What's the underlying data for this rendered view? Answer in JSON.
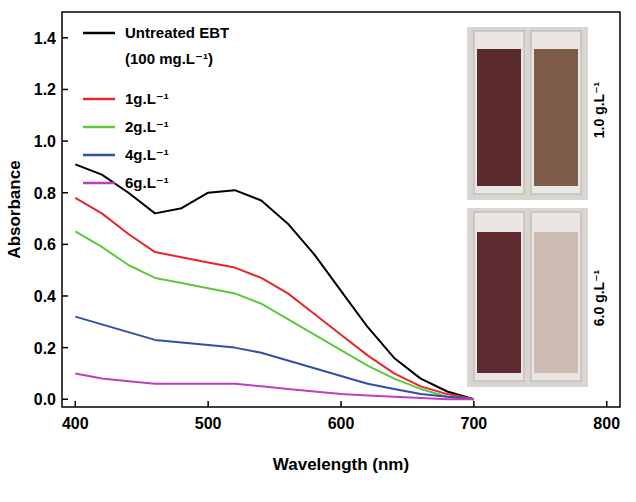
{
  "chart_data": {
    "type": "line",
    "x_label": "Wavelength (nm)",
    "y_label": "Absorbance",
    "x": [
      400,
      420,
      440,
      460,
      480,
      500,
      520,
      540,
      560,
      580,
      600,
      620,
      640,
      660,
      680,
      700
    ],
    "series": [
      {
        "name": "Untreated EBT (100 mg.L⁻¹)",
        "color": "#000000",
        "values": [
          0.91,
          0.87,
          0.8,
          0.72,
          0.74,
          0.8,
          0.81,
          0.77,
          0.68,
          0.56,
          0.42,
          0.28,
          0.16,
          0.08,
          0.03,
          0.0
        ]
      },
      {
        "name": "1g.L⁻¹",
        "color": "#e8262b",
        "values": [
          0.78,
          0.72,
          0.64,
          0.57,
          0.55,
          0.53,
          0.51,
          0.47,
          0.41,
          0.33,
          0.25,
          0.17,
          0.1,
          0.05,
          0.02,
          0.0
        ]
      },
      {
        "name": "2g.L⁻¹",
        "color": "#5cc83c",
        "values": [
          0.65,
          0.59,
          0.52,
          0.47,
          0.45,
          0.43,
          0.41,
          0.37,
          0.31,
          0.25,
          0.19,
          0.13,
          0.08,
          0.04,
          0.01,
          0.0
        ]
      },
      {
        "name": "4g.L⁻¹",
        "color": "#2f4fa8",
        "values": [
          0.32,
          0.29,
          0.26,
          0.23,
          0.22,
          0.21,
          0.2,
          0.18,
          0.15,
          0.12,
          0.09,
          0.06,
          0.04,
          0.02,
          0.01,
          0.0
        ]
      },
      {
        "name": "6g.L⁻¹",
        "color": "#c03cc0",
        "values": [
          0.1,
          0.08,
          0.07,
          0.06,
          0.06,
          0.06,
          0.06,
          0.05,
          0.04,
          0.03,
          0.02,
          0.015,
          0.01,
          0.005,
          0.0,
          0.0
        ]
      }
    ],
    "xlim": [
      390,
      810
    ],
    "xticks": [
      400,
      500,
      600,
      700,
      800
    ],
    "ylim": [
      -0.03,
      1.5
    ],
    "yticks": [
      {
        "value": 0,
        "label": "0.0"
      },
      {
        "value": 0.2,
        "label": "0.2"
      },
      {
        "value": 0.4,
        "label": "0.4"
      },
      {
        "value": 0.6,
        "label": "0.6"
      },
      {
        "value": 0.8,
        "label": "0.8"
      },
      {
        "value": 1.0,
        "label": "1.0"
      },
      {
        "value": 1.2,
        "label": "1.2"
      },
      {
        "value": 1.4,
        "label": "1.4"
      }
    ],
    "grid": false,
    "legend": "upper left",
    "annotations": [
      {
        "text": "1.0 g.L⁻¹"
      },
      {
        "text": "6.0 g.L⁻¹"
      }
    ]
  }
}
